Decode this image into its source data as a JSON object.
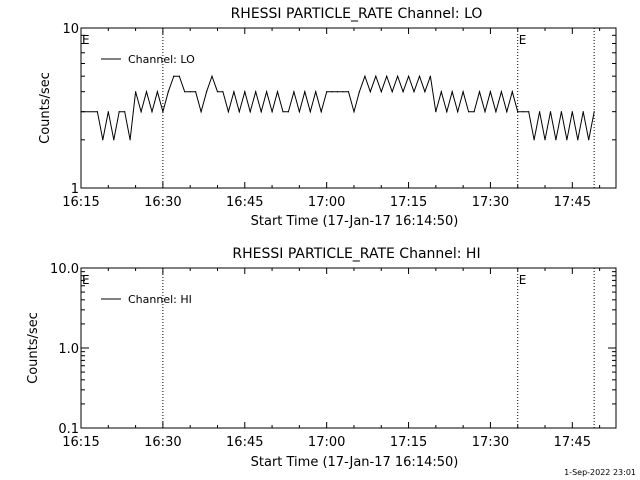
{
  "footer": {
    "timestamp": "1-Sep-2022 23:01"
  },
  "chart_data": [
    {
      "type": "line",
      "title": "RHESSI PARTICLE_RATE Channel: LO",
      "xlabel": "Start Time (17-Jan-17 16:14:50)",
      "ylabel": "Counts/sec",
      "yscale": "log",
      "x_ticklabels": [
        "16:15",
        "16:30",
        "16:45",
        "17:00",
        "17:15",
        "17:30",
        "17:45"
      ],
      "y_ticklabels": [
        "1",
        "10"
      ],
      "xlim": [
        "16:15",
        "17:53"
      ],
      "ylim": [
        1,
        10
      ],
      "legend": {
        "placement": "top-left"
      },
      "markers": [
        {
          "time": "16:30",
          "label": ""
        },
        {
          "time": "17:35",
          "label": "E"
        },
        {
          "time": "17:49",
          "label": ""
        }
      ],
      "edge_labels": [
        {
          "time": "16:15",
          "label": "E"
        }
      ],
      "series": [
        {
          "name": "Channel: LO",
          "x": [
            "16:15",
            "16:18",
            "16:19",
            "16:20",
            "16:21",
            "16:22",
            "16:23",
            "16:24",
            "16:25",
            "16:26",
            "16:27",
            "16:28",
            "16:29",
            "16:30",
            "16:31",
            "16:32",
            "16:33",
            "16:34",
            "16:35",
            "16:36",
            "16:37",
            "16:38",
            "16:39",
            "16:40",
            "16:41",
            "16:42",
            "16:43",
            "16:44",
            "16:45",
            "16:46",
            "16:47",
            "16:48",
            "16:49",
            "16:50",
            "16:51",
            "16:52",
            "16:53",
            "16:54",
            "16:55",
            "16:56",
            "16:57",
            "16:58",
            "16:59",
            "17:00",
            "17:01",
            "17:02",
            "17:03",
            "17:04",
            "17:05",
            "17:06",
            "17:07",
            "17:08",
            "17:09",
            "17:10",
            "17:11",
            "17:12",
            "17:13",
            "17:14",
            "17:15",
            "17:16",
            "17:17",
            "17:18",
            "17:19",
            "17:20",
            "17:21",
            "17:22",
            "17:23",
            "17:24",
            "17:25",
            "17:26",
            "17:27",
            "17:28",
            "17:29",
            "17:30",
            "17:31",
            "17:32",
            "17:33",
            "17:34",
            "17:35",
            "17:36",
            "17:37",
            "17:38",
            "17:39",
            "17:40",
            "17:41",
            "17:42",
            "17:43",
            "17:44",
            "17:45",
            "17:46",
            "17:47",
            "17:48",
            "17:49"
          ],
          "y": [
            3,
            3,
            2,
            3,
            2,
            3,
            3,
            2,
            4,
            3,
            4,
            3,
            4,
            3,
            4,
            5,
            5,
            4,
            4,
            4,
            3,
            4,
            5,
            4,
            4,
            3,
            4,
            3,
            4,
            3,
            4,
            3,
            4,
            3,
            4,
            3,
            3,
            4,
            3,
            4,
            3,
            4,
            3,
            4,
            4,
            4,
            4,
            4,
            3,
            4,
            5,
            4,
            5,
            4,
            5,
            4,
            5,
            4,
            5,
            4,
            5,
            4,
            5,
            3,
            4,
            3,
            4,
            3,
            4,
            3,
            3,
            4,
            3,
            4,
            3,
            4,
            3,
            4,
            3,
            3,
            3,
            2,
            3,
            2,
            3,
            2,
            3,
            2,
            3,
            2,
            3,
            2,
            3
          ]
        }
      ]
    },
    {
      "type": "line",
      "title": "RHESSI PARTICLE_RATE Channel: HI",
      "xlabel": "Start Time (17-Jan-17 16:14:50)",
      "ylabel": "Counts/sec",
      "yscale": "log",
      "x_ticklabels": [
        "16:15",
        "16:30",
        "16:45",
        "17:00",
        "17:15",
        "17:30",
        "17:45"
      ],
      "y_ticklabels": [
        "0.1",
        "1.0",
        "10.0"
      ],
      "xlim": [
        "16:15",
        "17:53"
      ],
      "ylim": [
        0.1,
        10
      ],
      "legend": {
        "placement": "top-left"
      },
      "markers": [
        {
          "time": "16:30",
          "label": ""
        },
        {
          "time": "17:35",
          "label": "E"
        },
        {
          "time": "17:49",
          "label": ""
        }
      ],
      "edge_labels": [
        {
          "time": "16:15",
          "label": "E"
        }
      ],
      "series": [
        {
          "name": "Channel: HI",
          "x": [],
          "y": []
        }
      ]
    }
  ]
}
